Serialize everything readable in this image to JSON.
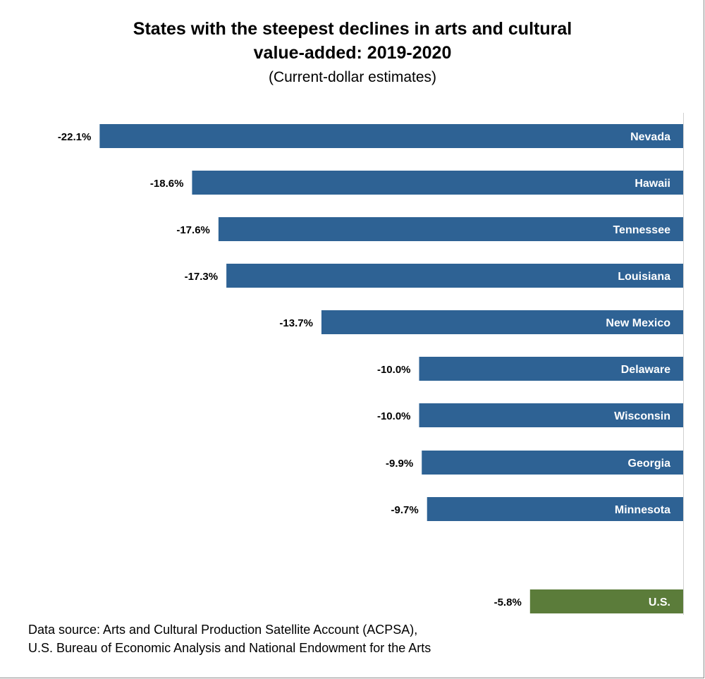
{
  "title_line1": "States with the steepest declines in arts and cultural",
  "title_line2": "value-added: 2019-2020",
  "subtitle": "(Current-dollar estimates)",
  "chart_data": {
    "type": "bar",
    "orientation": "horizontal",
    "categories": [
      "Nevada",
      "Hawaii",
      "Tennessee",
      "Louisiana",
      "New Mexico",
      "Delaware",
      "Wisconsin",
      "Georgia",
      "Minnesota",
      "U.S."
    ],
    "values": [
      -22.1,
      -18.6,
      -17.6,
      -17.3,
      -13.7,
      -10.0,
      -10.0,
      -9.9,
      -9.7,
      -5.8
    ],
    "value_labels": [
      "-22.1%",
      "-18.6%",
      "-17.6%",
      "-17.3%",
      "-13.7%",
      "-10.0%",
      "-10.0%",
      "-9.9%",
      "-9.7%",
      "-5.8%"
    ],
    "bar_colors": [
      "#2e6294",
      "#2e6294",
      "#2e6294",
      "#2e6294",
      "#2e6294",
      "#2e6294",
      "#2e6294",
      "#2e6294",
      "#2e6294",
      "#5b7c3a"
    ],
    "unit": "%",
    "title": "States with the steepest declines in arts and cultural value-added: 2019-2020",
    "subtitle": "(Current-dollar estimates)",
    "xlabel": "",
    "ylabel": "",
    "grid": false,
    "legend": false
  },
  "footnote_line1": "Data source: Arts and Cultural Production Satellite Account (ACPSA),",
  "footnote_line2": "U.S. Bureau of Economic Analysis and National Endowment for the Arts"
}
